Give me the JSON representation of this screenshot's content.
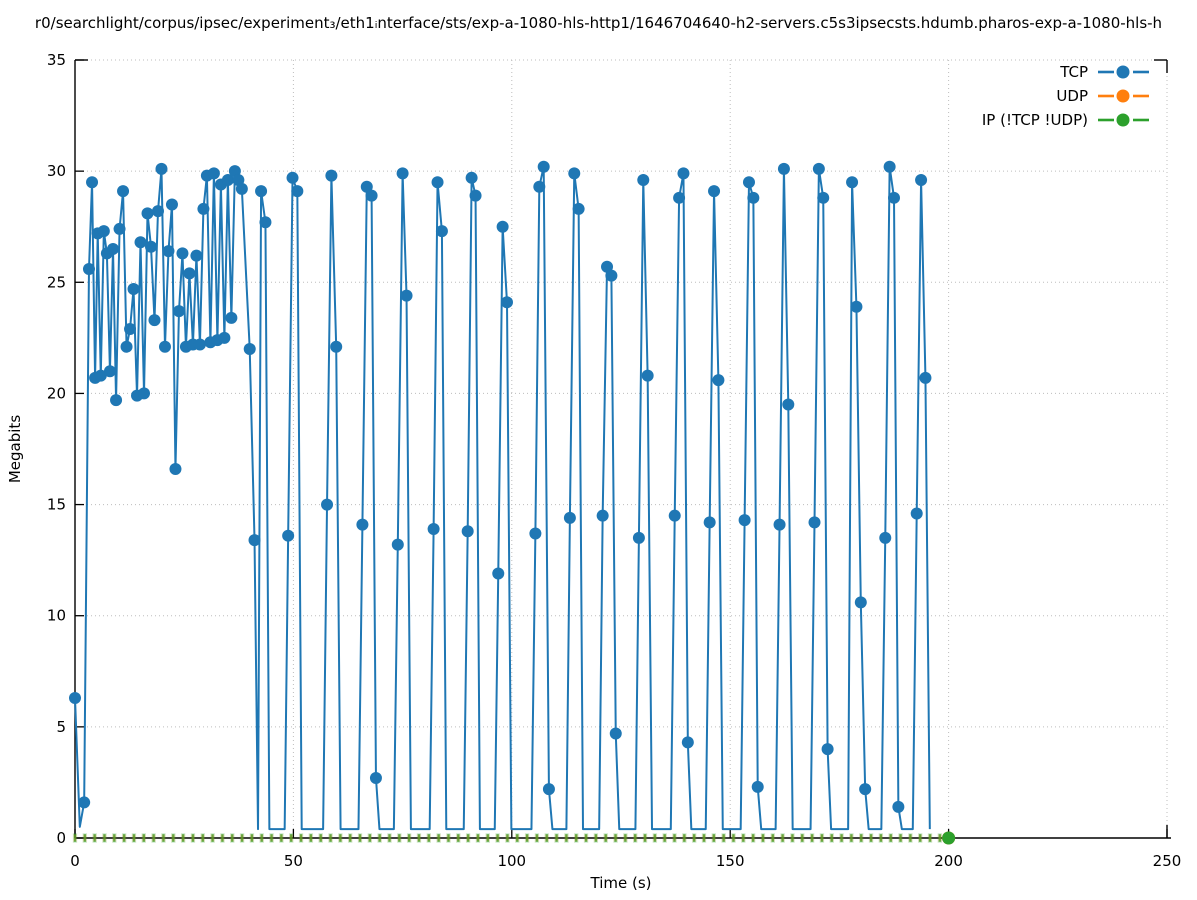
{
  "title": "r0/searchlight/corpus/ipsec/experiment₃/eth1ᵢnterface/sts/exp-a-1080-hls-http1/1646704640-h2-servers.c5s3ipsecsts.hdumb.pharos-exp-a-1080-hls-h",
  "chart_data": {
    "type": "line",
    "xlabel": "Time (s)",
    "ylabel": "Megabits",
    "xlim": [
      0,
      250
    ],
    "ylim": [
      0,
      35
    ],
    "xticks": [
      0,
      50,
      100,
      150,
      200,
      250
    ],
    "yticks": [
      0,
      5,
      10,
      15,
      20,
      25,
      30,
      35
    ],
    "grid": true,
    "grid_style": "dotted",
    "legend_position": "top-right",
    "point_format": "[time_s, megabits, has_marker]",
    "series": [
      {
        "name": "TCP",
        "color": "#1f77b4",
        "style": "linespoints",
        "points": [
          [
            0,
            6.3,
            1
          ],
          [
            1.1,
            0.5,
            0
          ],
          [
            2.1,
            1.6,
            1
          ],
          [
            3.2,
            25.6,
            1
          ],
          [
            3.9,
            29.5,
            1
          ],
          [
            4.6,
            20.7,
            1
          ],
          [
            5.2,
            27.2,
            1
          ],
          [
            5.9,
            20.8,
            1
          ],
          [
            6.6,
            27.3,
            1
          ],
          [
            7.3,
            26.3,
            1
          ],
          [
            8,
            21,
            1
          ],
          [
            8.7,
            26.5,
            1
          ],
          [
            9.4,
            19.7,
            1
          ],
          [
            10.2,
            27.4,
            1
          ],
          [
            11,
            29.1,
            1
          ],
          [
            11.8,
            22.1,
            1
          ],
          [
            12.6,
            22.9,
            1
          ],
          [
            13.4,
            24.7,
            1
          ],
          [
            14.2,
            19.9,
            1
          ],
          [
            15,
            26.8,
            1
          ],
          [
            15.8,
            20,
            1
          ],
          [
            16.6,
            28.1,
            1
          ],
          [
            17.4,
            26.6,
            1
          ],
          [
            18.2,
            23.3,
            1
          ],
          [
            19,
            28.2,
            1
          ],
          [
            19.8,
            30.1,
            1
          ],
          [
            20.6,
            22.1,
            1
          ],
          [
            21.4,
            26.4,
            1
          ],
          [
            22.2,
            28.5,
            1
          ],
          [
            23,
            16.6,
            1
          ],
          [
            23.8,
            23.7,
            1
          ],
          [
            24.6,
            26.3,
            1
          ],
          [
            25.4,
            22.1,
            1
          ],
          [
            26.2,
            25.4,
            1
          ],
          [
            27,
            22.2,
            1
          ],
          [
            27.8,
            26.2,
            1
          ],
          [
            28.6,
            22.2,
            1
          ],
          [
            29.4,
            28.3,
            1
          ],
          [
            30.2,
            29.8,
            1
          ],
          [
            31,
            22.3,
            1
          ],
          [
            31.8,
            29.9,
            1
          ],
          [
            32.6,
            22.4,
            1
          ],
          [
            33.4,
            29.4,
            1
          ],
          [
            34.2,
            22.5,
            1
          ],
          [
            35,
            29.6,
            1
          ],
          [
            35.8,
            23.4,
            1
          ],
          [
            36.6,
            30,
            1
          ],
          [
            37.4,
            29.6,
            1
          ],
          [
            38.2,
            29.2,
            1
          ],
          [
            40,
            22,
            1
          ],
          [
            41.1,
            13.4,
            1
          ],
          [
            41.9,
            0.4,
            0
          ],
          [
            42.6,
            29.1,
            1
          ],
          [
            43.6,
            27.7,
            1
          ],
          [
            44.5,
            0.4,
            0
          ],
          [
            48,
            0.4,
            0
          ],
          [
            48.8,
            13.6,
            1
          ],
          [
            49.8,
            29.7,
            1
          ],
          [
            50.9,
            29.1,
            1
          ],
          [
            51.9,
            0.4,
            0
          ],
          [
            56.8,
            0.4,
            0
          ],
          [
            57.7,
            15,
            1
          ],
          [
            58.7,
            29.8,
            1
          ],
          [
            59.8,
            22.1,
            1
          ],
          [
            60.8,
            0.4,
            0
          ],
          [
            64.9,
            0.4,
            0
          ],
          [
            65.8,
            14.1,
            1
          ],
          [
            66.8,
            29.3,
            1
          ],
          [
            67.9,
            28.9,
            1
          ],
          [
            68.9,
            2.7,
            1
          ],
          [
            69.7,
            0.4,
            0
          ],
          [
            73,
            0.4,
            0
          ],
          [
            73.9,
            13.2,
            1
          ],
          [
            75,
            29.9,
            1
          ],
          [
            75.9,
            24.4,
            1
          ],
          [
            76.9,
            0.4,
            0
          ],
          [
            81.2,
            0.4,
            0
          ],
          [
            82.1,
            13.9,
            1
          ],
          [
            83,
            29.5,
            1
          ],
          [
            84,
            27.3,
            1
          ],
          [
            85,
            0.4,
            0
          ],
          [
            89,
            0.4,
            0
          ],
          [
            89.9,
            13.8,
            1
          ],
          [
            90.8,
            29.7,
            1
          ],
          [
            91.7,
            28.9,
            1
          ],
          [
            92.7,
            0.4,
            0
          ],
          [
            96.1,
            0.4,
            0
          ],
          [
            96.9,
            11.9,
            1
          ],
          [
            97.9,
            27.5,
            1
          ],
          [
            98.9,
            24.1,
            1
          ],
          [
            99.9,
            0.4,
            0
          ],
          [
            104.5,
            0.4,
            0
          ],
          [
            105.4,
            13.7,
            1
          ],
          [
            106.3,
            29.3,
            1
          ],
          [
            107.3,
            30.2,
            1
          ],
          [
            108.5,
            2.2,
            1
          ],
          [
            109.3,
            0.4,
            0
          ],
          [
            112.5,
            0.4,
            0
          ],
          [
            113.3,
            14.4,
            1
          ],
          [
            114.3,
            29.9,
            1
          ],
          [
            115.3,
            28.3,
            1
          ],
          [
            116.3,
            0.4,
            0
          ],
          [
            120,
            0.4,
            0
          ],
          [
            120.8,
            14.5,
            1
          ],
          [
            121.8,
            25.7,
            1
          ],
          [
            122.8,
            25.3,
            1
          ],
          [
            123.8,
            4.7,
            1
          ],
          [
            124.6,
            0.4,
            0
          ],
          [
            128.3,
            0.4,
            0
          ],
          [
            129.1,
            13.5,
            1
          ],
          [
            130.1,
            29.6,
            1
          ],
          [
            131.1,
            20.8,
            1
          ],
          [
            132.1,
            0.4,
            0
          ],
          [
            136.4,
            0.4,
            0
          ],
          [
            137.3,
            14.5,
            1
          ],
          [
            138.3,
            28.8,
            1
          ],
          [
            139.3,
            29.9,
            1
          ],
          [
            140.3,
            4.3,
            1
          ],
          [
            141.1,
            0.4,
            0
          ],
          [
            144.4,
            0.4,
            0
          ],
          [
            145.3,
            14.2,
            1
          ],
          [
            146.3,
            29.1,
            1
          ],
          [
            147.3,
            20.6,
            1
          ],
          [
            148.3,
            0.4,
            0
          ],
          [
            152.4,
            0.4,
            0
          ],
          [
            153.3,
            14.3,
            1
          ],
          [
            154.3,
            29.5,
            1
          ],
          [
            155.3,
            28.8,
            1
          ],
          [
            156.3,
            2.3,
            1
          ],
          [
            157.1,
            0.4,
            0
          ],
          [
            160.4,
            0.4,
            0
          ],
          [
            161.3,
            14.1,
            1
          ],
          [
            162.3,
            30.1,
            1
          ],
          [
            163.3,
            19.5,
            1
          ],
          [
            164.3,
            0.4,
            0
          ],
          [
            168.4,
            0.4,
            0
          ],
          [
            169.3,
            14.2,
            1
          ],
          [
            170.3,
            30.1,
            1
          ],
          [
            171.3,
            28.8,
            1
          ],
          [
            172.3,
            4,
            1
          ],
          [
            173.1,
            0.4,
            0
          ],
          [
            177,
            0.4,
            0
          ],
          [
            177.9,
            29.5,
            1
          ],
          [
            178.9,
            23.9,
            1
          ],
          [
            179.9,
            10.6,
            1
          ],
          [
            180.9,
            2.2,
            1
          ],
          [
            181.7,
            0.4,
            0
          ],
          [
            184.6,
            0.4,
            0
          ],
          [
            185.5,
            13.5,
            1
          ],
          [
            186.5,
            30.2,
            1
          ],
          [
            187.5,
            28.8,
            1
          ],
          [
            188.5,
            1.4,
            1
          ],
          [
            189.3,
            0.4,
            0
          ],
          [
            191.8,
            0.4,
            0
          ],
          [
            192.7,
            14.6,
            1
          ],
          [
            193.7,
            29.6,
            1
          ],
          [
            194.7,
            20.7,
            1
          ],
          [
            195.7,
            0.4,
            0
          ]
        ]
      },
      {
        "name": "UDP",
        "color": "#ff7f0e",
        "style": "linespoints",
        "constant_value": 0,
        "t_start": 0,
        "t_end": 200,
        "t_step": 2.25,
        "note": "flat at zero along the x-axis, hidden beneath the IP series marks"
      },
      {
        "name": "IP (!TCP  !UDP)",
        "color": "#2ca02c",
        "style": "linespoints",
        "constant_value": 0,
        "t_start": 0,
        "t_end": 200,
        "t_step": 2.25,
        "note": "flat at zero along the x-axis; small marks at every sample, full dot at t=200"
      }
    ]
  }
}
